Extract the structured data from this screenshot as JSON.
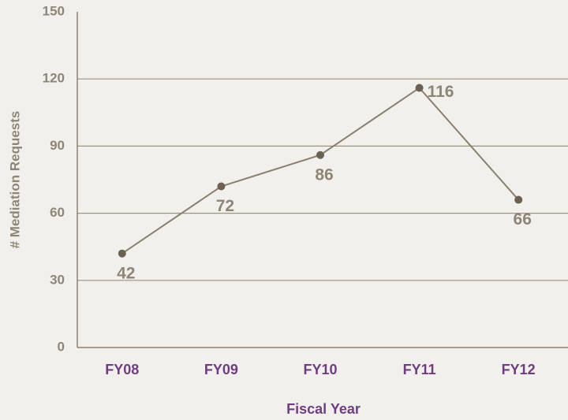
{
  "chart_data": {
    "type": "line",
    "categories": [
      "FY08",
      "FY09",
      "FY10",
      "FY11",
      "FY12"
    ],
    "series": [
      {
        "name": "# Mediation Requests",
        "color": "#8a8070",
        "values": [
          42,
          72,
          86,
          116,
          66
        ]
      }
    ],
    "xlabel": "Fiscal Year",
    "ylabel": "# Mediation Requests",
    "ylim": [
      0,
      150
    ],
    "yticks": [
      0,
      30,
      60,
      90,
      120,
      150
    ],
    "grid": true
  }
}
